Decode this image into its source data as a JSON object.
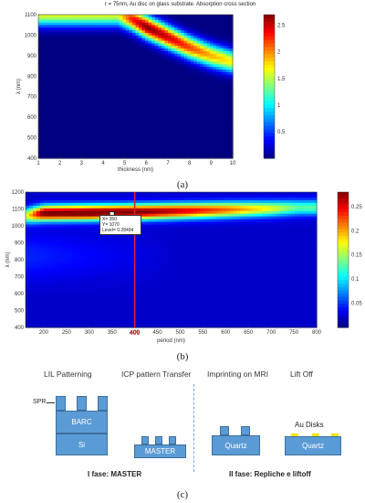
{
  "chart_data": [
    {
      "type": "heatmap",
      "title": "r = 75nm, Au disc on glass substrate. Absorption cross section",
      "xlabel": "thickness (nm)",
      "ylabel": "λ (nm)",
      "xlim": [
        1,
        10
      ],
      "ylim": [
        400,
        1100
      ],
      "x_ticks": [
        "1",
        "2",
        "3",
        "4",
        "5",
        "6",
        "7",
        "8",
        "9",
        "10"
      ],
      "y_ticks": [
        "400",
        "500",
        "600",
        "700",
        "800",
        "900",
        "1000",
        "1100"
      ],
      "colorbar_ticks": [
        "0.5",
        "1",
        "1.5",
        "2",
        "2.5"
      ],
      "clim": [
        0,
        2.7
      ],
      "ridge": [
        {
          "x": 4.7,
          "y": 1100,
          "v": 1.6
        },
        {
          "x": 5.3,
          "y": 1080,
          "v": 2.3
        },
        {
          "x": 6.0,
          "y": 1040,
          "v": 2.7
        },
        {
          "x": 7.0,
          "y": 990,
          "v": 2.5
        },
        {
          "x": 8.0,
          "y": 940,
          "v": 2.2
        },
        {
          "x": 9.0,
          "y": 900,
          "v": 1.9
        },
        {
          "x": 10.0,
          "y": 870,
          "v": 1.7
        }
      ]
    },
    {
      "type": "heatmap",
      "title": "",
      "xlabel": "period (nm)",
      "ylabel": "λ (nm)",
      "xlim": [
        160,
        800
      ],
      "ylim": [
        400,
        1200
      ],
      "x_ticks": [
        "200",
        "250",
        "300",
        "350",
        "400",
        "450",
        "500",
        "550",
        "600",
        "650",
        "700",
        "750",
        "800"
      ],
      "y_ticks": [
        "400",
        "500",
        "600",
        "700",
        "800",
        "900",
        "1000",
        "1100",
        "1200"
      ],
      "colorbar_ticks": [
        "0.05",
        "0.1",
        "0.15",
        "0.2",
        "0.25"
      ],
      "clim": [
        0,
        0.28
      ],
      "ridge": [
        {
          "x": 160,
          "y": 1060,
          "v": 0.14
        },
        {
          "x": 200,
          "y": 1075,
          "v": 0.27
        },
        {
          "x": 300,
          "y": 1078,
          "v": 0.28
        },
        {
          "x": 400,
          "y": 1082,
          "v": 0.27
        },
        {
          "x": 500,
          "y": 1088,
          "v": 0.24
        },
        {
          "x": 600,
          "y": 1095,
          "v": 0.2
        },
        {
          "x": 700,
          "y": 1102,
          "v": 0.15
        },
        {
          "x": 760,
          "y": 1108,
          "v": 0.11
        }
      ],
      "marker_line": {
        "x": 400,
        "label": "400",
        "color": "#e0202a"
      },
      "datatip": {
        "x_text": "X= 350",
        "y_text": "Y= 1070",
        "level_text": "Level= 0.28494",
        "x": 350,
        "y": 1070
      }
    }
  ],
  "diagram": {
    "stages": [
      "LIL Patterning",
      "ICP pattern Transfer",
      "Imprinting on MRI",
      "Lift Off"
    ],
    "spr_label": "SPR",
    "barc_label": "BARC",
    "si_label": "Si",
    "master_label": "MASTER",
    "quartz_label_1": "Quartz",
    "quartz_label_2": "Quartz",
    "au_label": "Au Disks",
    "phase1": "I fase: MASTER",
    "phase2": "II fase: Repliche e liftoff"
  },
  "panel_labels": {
    "a": "(a)",
    "b": "(b)",
    "c": "(c)"
  },
  "colors": {
    "block": "#5b9bd5",
    "gold": "#f2e600",
    "marker": "#e0202a"
  }
}
